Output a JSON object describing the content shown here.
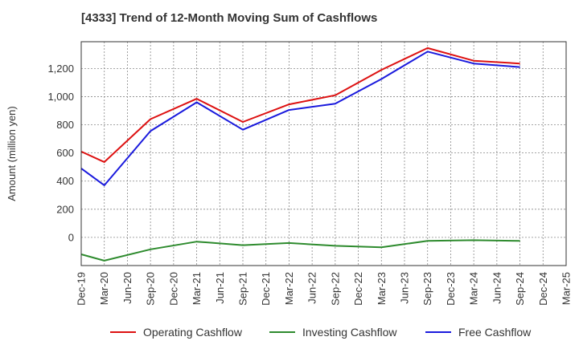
{
  "chart_data": {
    "type": "line",
    "title": "[4333]  Trend of 12-Month Moving Sum of Cashflows",
    "xlabel": "",
    "ylabel": "Amount (million yen)",
    "categories": [
      "Dec-19",
      "Mar-20",
      "Jun-20",
      "Sep-20",
      "Dec-20",
      "Mar-21",
      "Jun-21",
      "Sep-21",
      "Dec-21",
      "Mar-22",
      "Jun-22",
      "Sep-22",
      "Dec-22",
      "Mar-23",
      "Jun-23",
      "Sep-23",
      "Dec-23",
      "Mar-24",
      "Jun-24",
      "Sep-24",
      "Dec-24",
      "Mar-25"
    ],
    "ylim": [
      -200,
      1390
    ],
    "yticks": [
      0,
      200,
      400,
      600,
      800,
      1000,
      1200
    ],
    "ytick_labels": [
      "0",
      "200",
      "400",
      "600",
      "800",
      "1,000",
      "1,200"
    ],
    "grid": true,
    "legend_position": "bottom",
    "series": [
      {
        "name": "Operating Cashflow",
        "color": "#dd1111",
        "values": [
          610,
          535,
          null,
          840,
          null,
          985,
          null,
          820,
          null,
          945,
          null,
          1010,
          null,
          1190,
          null,
          1345,
          null,
          1255,
          null,
          1235,
          null,
          null
        ]
      },
      {
        "name": "Investing Cashflow",
        "color": "#2e8b2e",
        "values": [
          -120,
          -165,
          null,
          -85,
          null,
          -30,
          null,
          -55,
          null,
          -40,
          null,
          -60,
          null,
          -70,
          null,
          -25,
          null,
          -20,
          null,
          -25,
          null,
          null
        ]
      },
      {
        "name": "Free Cashflow",
        "color": "#1a1add",
        "values": [
          490,
          370,
          null,
          755,
          null,
          960,
          null,
          765,
          null,
          905,
          null,
          950,
          null,
          1125,
          null,
          1320,
          null,
          1235,
          null,
          1210,
          null,
          null
        ]
      }
    ]
  }
}
